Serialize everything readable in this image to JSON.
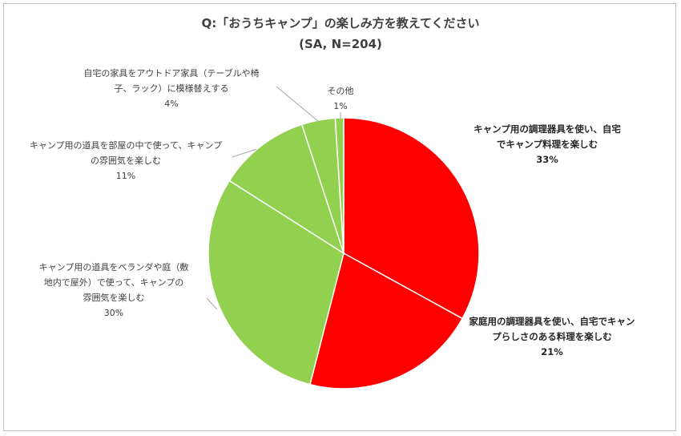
{
  "chart_data": {
    "type": "pie",
    "title": "Q:「おうちキャンプ」の楽しみ方を教えてください",
    "subtitle": "(SA, N=204)",
    "slices": [
      {
        "label": "キャンプ用の調理器具を使い、自宅でキャンプ料理を楽しむ",
        "label_lines": [
          "キャンプ用の調理器具を使い、自宅",
          "でキャンプ料理を楽しむ"
        ],
        "value": 33,
        "value_label": "33%",
        "color": "#ff0000"
      },
      {
        "label": "家庭用の調理器具を使い、自宅でキャンプらしさのある料理を楽しむ",
        "label_lines": [
          "家庭用の調理器具を使い、自宅でキャン",
          "プらしさのある料理を楽しむ"
        ],
        "value": 21,
        "value_label": "21%",
        "color": "#ff0000"
      },
      {
        "label": "キャンプ用の道具をベランダや庭（敷地内で屋外）で使って、キャンプの雰囲気を楽しむ",
        "label_lines": [
          "キャンプ用の道具をベランダや庭（敷",
          "地内で屋外）で使って、キャンプの",
          "雰囲気を楽しむ"
        ],
        "value": 30,
        "value_label": "30%",
        "color": "#92d050"
      },
      {
        "label": "キャンプ用の道具を部屋の中で使って、キャンプの雰囲気を楽しむ",
        "label_lines": [
          "キャンプ用の道具を部屋の中で使って、キャンプ",
          "の雰囲気を楽しむ"
        ],
        "value": 11,
        "value_label": "11%",
        "color": "#92d050"
      },
      {
        "label": "自宅の家具をアウトドア家具（テーブルや椅子、ラック）に模様替えする",
        "label_lines": [
          "自宅の家具をアウトドア家具（テーブルや椅",
          "子、ラック）に模様替えする"
        ],
        "value": 4,
        "value_label": "4%",
        "color": "#92d050"
      },
      {
        "label": "その他",
        "label_lines": [
          "その他"
        ],
        "value": 1,
        "value_label": "1%",
        "color": "#92d050"
      }
    ],
    "legend": "none"
  }
}
